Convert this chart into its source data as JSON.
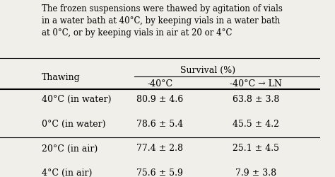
{
  "caption": "The frozen suspensions were thawed by agitation of vials\nin a water bath at 40°C, by keeping vials in a water bath\nat 0°C, or by keeping vials in air at 20 or 4°C",
  "col_header_main": "Survival (%)",
  "col_header_sub1": "-40°C",
  "col_header_sub2": "-40°C → LN",
  "row_header": "Thawing",
  "rows": [
    {
      "label": "40°C (in water)",
      "val1": "80.9 ± 4.6",
      "val2": "63.8 ± 3.8"
    },
    {
      "label": "0°C (in water)",
      "val1": "78.6 ± 5.4",
      "val2": "45.5 ± 4.2"
    },
    {
      "label": "20°C (in air)",
      "val1": "77.4 ± 2.8",
      "val2": "25.1 ± 4.5"
    },
    {
      "label": "4°C (in air)",
      "val1": "75.6 ± 5.9",
      "val2": "7.9 ± 3.8"
    }
  ],
  "bg_color": "#f0efea",
  "text_color": "#000000",
  "font_size": 9,
  "caption_font_size": 8.5
}
